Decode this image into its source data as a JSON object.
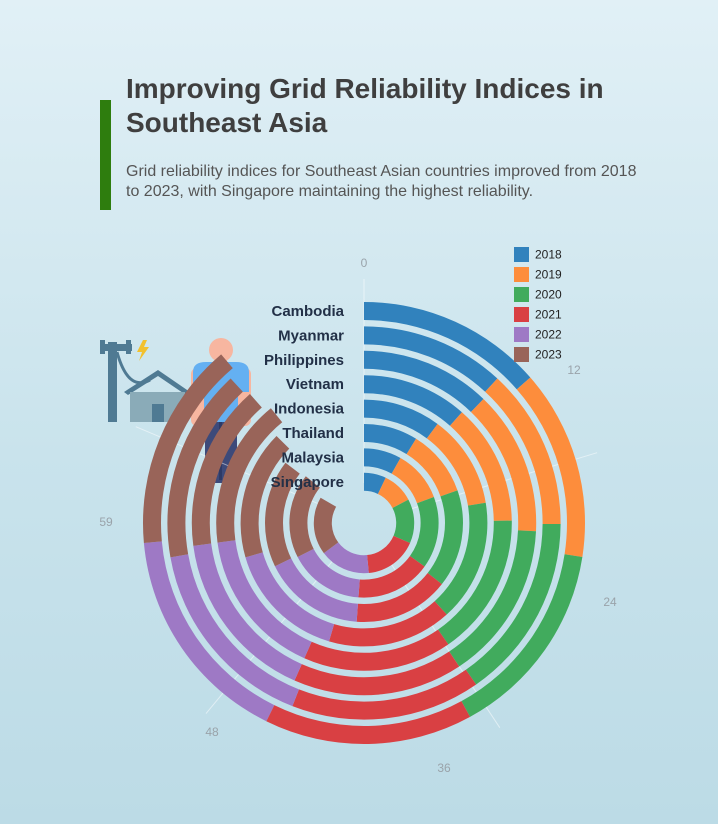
{
  "title": "Improving Grid Reliability Indices in Southeast Asia",
  "subtitle": "Grid reliability indices for Southeast Asian countries improved from 2018 to 2023, with Singapore maintaining the highest reliability.",
  "illustration": {
    "icons": [
      "power-pole-icon",
      "lightning-icon",
      "house-icon",
      "person-icon"
    ]
  },
  "chart_data": {
    "type": "radial-stacked-bar",
    "categories": [
      "Cambodia",
      "Myanmar",
      "Philippines",
      "Vietnam",
      "Indonesia",
      "Thailand",
      "Malaysia",
      "Singapore"
    ],
    "axis": {
      "ticks": [
        "0",
        "12",
        "24",
        "36",
        "48",
        "59"
      ],
      "max": 59
    },
    "series": [
      {
        "name": "2018",
        "color": "#3182bd",
        "values": [
          8.0,
          7.0,
          7.2,
          6.8,
          6.0,
          5.2,
          4.8,
          4.2
        ]
      },
      {
        "name": "2019",
        "color": "#fd8d3c",
        "values": [
          8.2,
          7.8,
          8.0,
          7.8,
          7.2,
          6.4,
          6.6,
          6.0
        ]
      },
      {
        "name": "2020",
        "color": "#41ab5d",
        "values": [
          8.6,
          9.0,
          8.8,
          9.2,
          9.4,
          9.4,
          9.2,
          8.4
        ]
      },
      {
        "name": "2021",
        "color": "#d94043",
        "values": [
          9.0,
          9.2,
          9.4,
          9.6,
          9.6,
          9.2,
          9.6,
          10.0
        ]
      },
      {
        "name": "2022",
        "color": "#9e79c5",
        "values": [
          9.6,
          9.6,
          9.6,
          9.6,
          9.4,
          9.8,
          9.6,
          9.6
        ]
      },
      {
        "name": "2023",
        "color": "#996459",
        "values": [
          9.0,
          9.4,
          9.2,
          9.6,
          10.0,
          10.4,
          10.8,
          11.0
        ]
      }
    ],
    "legend_position": "top-right",
    "grid": false
  }
}
